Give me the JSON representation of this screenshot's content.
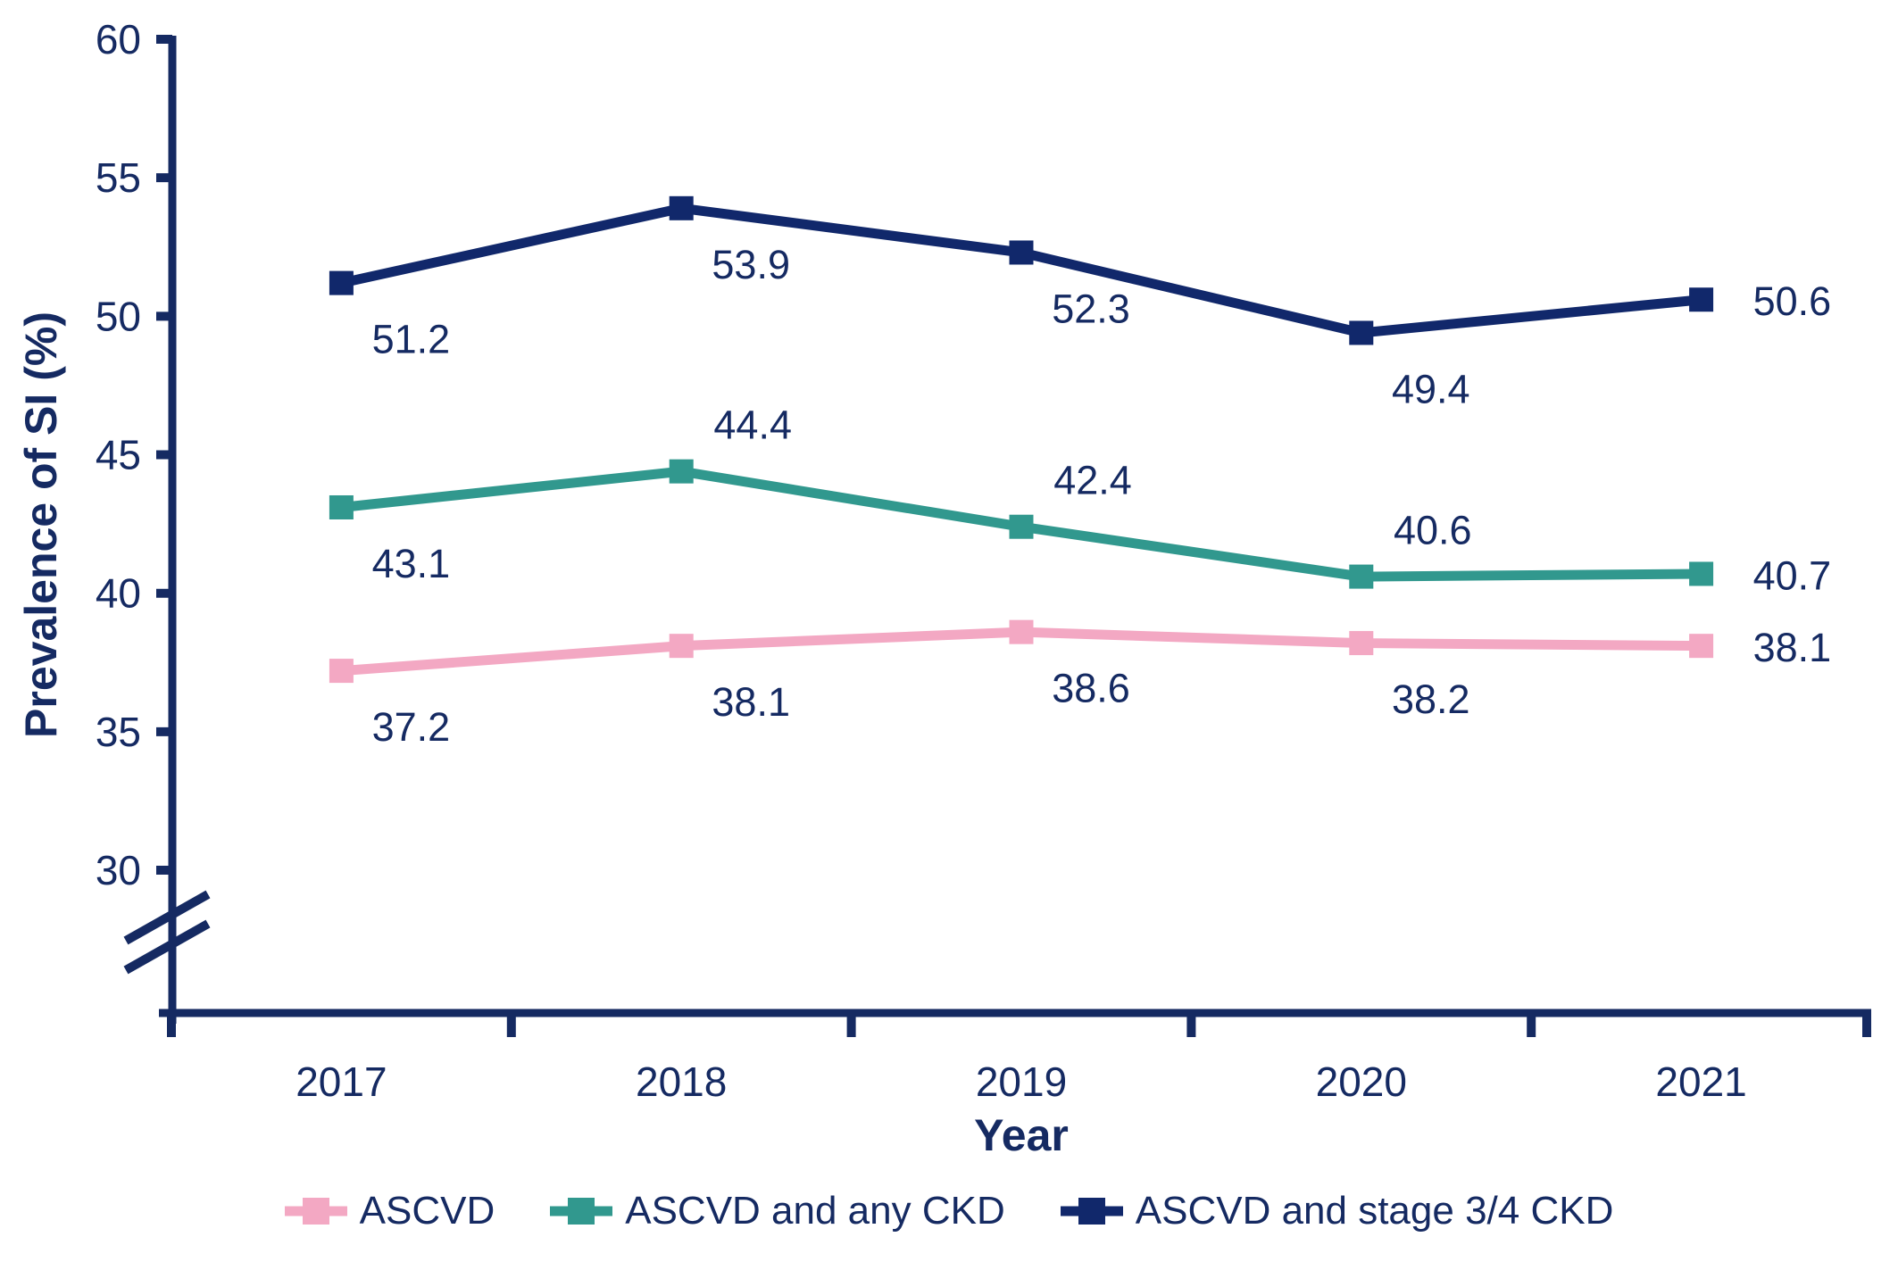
{
  "page": {
    "background": "#ffffff"
  },
  "colors": {
    "axis": "#152a62",
    "text": "#152a62"
  },
  "chart_data": {
    "type": "line",
    "title": "",
    "xlabel": "Year",
    "ylabel": "Prevalence of SI (%)",
    "categories": [
      "2017",
      "2018",
      "2019",
      "2020",
      "2021"
    ],
    "y_ticks": [
      60,
      55,
      50,
      45,
      40,
      35,
      30
    ],
    "ylim": [
      30,
      60
    ],
    "axis_break_below_min": true,
    "grid": false,
    "legend_position": "bottom",
    "value_label_decimals": 1,
    "series": [
      {
        "name": "ASCVD",
        "color": "#f3a8c3",
        "values": [
          37.2,
          38.1,
          38.6,
          38.2,
          38.1
        ],
        "label_placement": [
          "below",
          "below",
          "below",
          "below",
          "right"
        ]
      },
      {
        "name": "ASCVD and any CKD",
        "color": "#31988e",
        "values": [
          43.1,
          44.4,
          42.4,
          40.6,
          40.7
        ],
        "label_placement": [
          "below",
          "above",
          "above",
          "above",
          "right"
        ]
      },
      {
        "name": "ASCVD and stage 3/4 CKD",
        "color": "#11286b",
        "values": [
          51.2,
          53.9,
          52.3,
          49.4,
          50.6
        ],
        "label_placement": [
          "below",
          "below",
          "below",
          "below",
          "right"
        ]
      }
    ]
  }
}
